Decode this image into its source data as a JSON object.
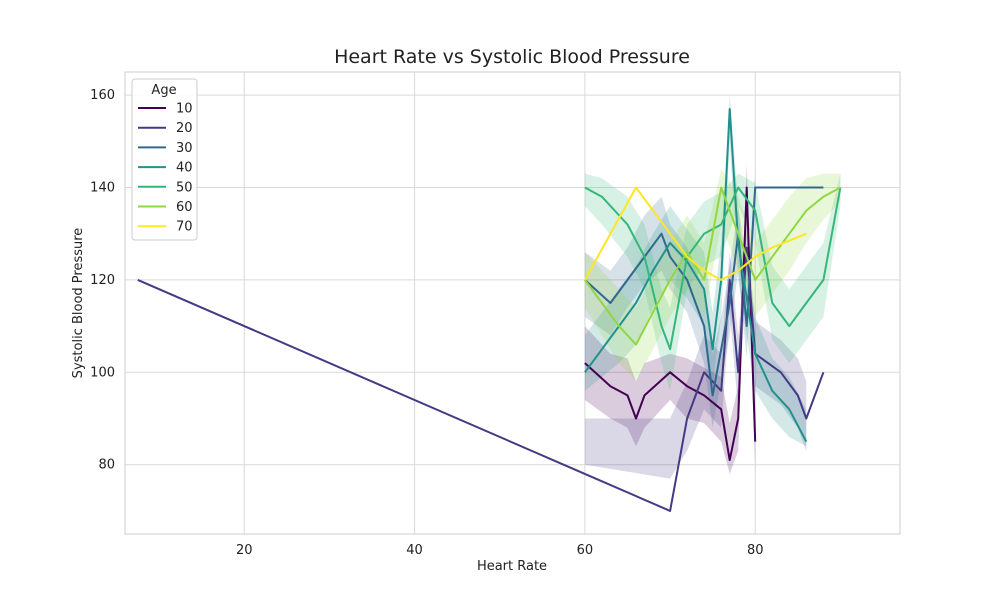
{
  "chart_data": {
    "type": "line",
    "title": "Heart Rate vs Systolic Blood Pressure",
    "xlabel": "Heart Rate",
    "ylabel": "Systolic Blood Pressure",
    "xlim": [
      6,
      97
    ],
    "ylim": [
      65,
      165
    ],
    "xticks": [
      20,
      40,
      60,
      80
    ],
    "yticks": [
      80,
      100,
      120,
      140,
      160
    ],
    "grid": true,
    "legend": {
      "title": "Age",
      "position": "top-left"
    },
    "series": [
      {
        "name": "10",
        "color": "#440154",
        "points": [
          [
            60,
            102
          ],
          [
            63,
            97
          ],
          [
            65,
            95
          ],
          [
            66,
            90
          ],
          [
            67,
            95
          ],
          [
            70,
            100
          ],
          [
            72,
            97
          ],
          [
            74,
            95
          ],
          [
            76,
            92
          ],
          [
            77,
            81
          ],
          [
            78,
            90
          ],
          [
            79,
            140
          ],
          [
            80,
            85
          ]
        ],
        "band": [
          [
            60,
            110,
            94
          ],
          [
            63,
            104,
            90
          ],
          [
            65,
            103,
            88
          ],
          [
            66,
            98,
            84
          ],
          [
            67,
            102,
            88
          ],
          [
            70,
            104,
            94
          ],
          [
            72,
            103,
            90
          ],
          [
            74,
            101,
            89
          ],
          [
            76,
            99,
            85
          ],
          [
            77,
            89,
            78
          ],
          [
            78,
            97,
            83
          ],
          [
            79,
            145,
            132
          ],
          [
            80,
            92,
            79
          ]
        ]
      },
      {
        "name": "20",
        "color": "#443983",
        "points": [
          [
            7.5,
            120
          ],
          [
            60,
            78
          ],
          [
            70,
            70
          ],
          [
            72,
            90
          ],
          [
            74,
            100
          ],
          [
            75,
            98
          ],
          [
            76,
            96
          ],
          [
            77,
            120
          ],
          [
            78,
            100
          ],
          [
            79,
            127
          ],
          [
            80,
            104
          ],
          [
            83,
            100
          ],
          [
            85,
            95
          ],
          [
            86,
            90
          ],
          [
            88,
            100
          ]
        ],
        "band": [
          [
            60,
            90,
            80
          ],
          [
            70,
            90,
            77
          ],
          [
            72,
            98,
            83
          ],
          [
            74,
            108,
            92
          ],
          [
            75,
            106,
            90
          ],
          [
            76,
            104,
            88
          ],
          [
            77,
            126,
            113
          ],
          [
            78,
            108,
            92
          ],
          [
            79,
            131,
            121
          ],
          [
            80,
            111,
            97
          ],
          [
            83,
            107,
            93
          ],
          [
            85,
            103,
            88
          ],
          [
            86,
            98,
            83
          ]
        ]
      },
      {
        "name": "30",
        "color": "#31688e",
        "points": [
          [
            60,
            120
          ],
          [
            63,
            115
          ],
          [
            65,
            120
          ],
          [
            67,
            125
          ],
          [
            69,
            130
          ],
          [
            70,
            125
          ],
          [
            72,
            120
          ],
          [
            74,
            110
          ],
          [
            75,
            95
          ],
          [
            76,
            105
          ],
          [
            77,
            115
          ],
          [
            78,
            130
          ],
          [
            79,
            110
          ],
          [
            80,
            140
          ],
          [
            84,
            140
          ],
          [
            88,
            140
          ]
        ],
        "band": [
          [
            60,
            126,
            112
          ],
          [
            63,
            122,
            108
          ],
          [
            65,
            127,
            114
          ],
          [
            67,
            134,
            119
          ],
          [
            69,
            138,
            122
          ],
          [
            70,
            132,
            118
          ],
          [
            72,
            127,
            113
          ],
          [
            74,
            118,
            102
          ],
          [
            75,
            104,
            88
          ],
          [
            76,
            112,
            98
          ],
          [
            77,
            123,
            108
          ],
          [
            78,
            136,
            122
          ],
          [
            79,
            117,
            103
          ],
          [
            80,
            143,
            136
          ]
        ]
      },
      {
        "name": "40",
        "color": "#21918c",
        "points": [
          [
            60,
            100
          ],
          [
            64,
            110
          ],
          [
            66,
            115
          ],
          [
            68,
            122
          ],
          [
            70,
            128
          ],
          [
            72,
            124
          ],
          [
            74,
            118
          ],
          [
            75,
            105
          ],
          [
            76,
            120
          ],
          [
            77,
            157
          ],
          [
            78,
            128
          ],
          [
            80,
            104
          ],
          [
            82,
            96
          ],
          [
            84,
            92
          ],
          [
            86,
            85
          ]
        ],
        "band": [
          [
            60,
            108,
            96
          ],
          [
            64,
            118,
            102
          ],
          [
            66,
            123,
            106
          ],
          [
            68,
            130,
            114
          ],
          [
            70,
            136,
            120
          ],
          [
            72,
            131,
            116
          ],
          [
            74,
            126,
            110
          ],
          [
            75,
            113,
            97
          ],
          [
            76,
            128,
            112
          ],
          [
            77,
            160,
            150
          ],
          [
            78,
            136,
            120
          ],
          [
            80,
            112,
            96
          ],
          [
            82,
            103,
            90
          ],
          [
            84,
            99,
            86
          ],
          [
            86,
            92,
            84
          ]
        ]
      },
      {
        "name": "50",
        "color": "#35b779",
        "points": [
          [
            60,
            140
          ],
          [
            62,
            138
          ],
          [
            65,
            132
          ],
          [
            67,
            125
          ],
          [
            69,
            110
          ],
          [
            70,
            105
          ],
          [
            72,
            125
          ],
          [
            74,
            130
          ],
          [
            76,
            132
          ],
          [
            78,
            140
          ],
          [
            80,
            135
          ],
          [
            82,
            115
          ],
          [
            84,
            110
          ],
          [
            86,
            115
          ],
          [
            88,
            120
          ],
          [
            90,
            140
          ]
        ],
        "band": [
          [
            60,
            143,
            136
          ],
          [
            62,
            142,
            132
          ],
          [
            65,
            138,
            125
          ],
          [
            67,
            132,
            118
          ],
          [
            69,
            118,
            102
          ],
          [
            70,
            114,
            96
          ],
          [
            72,
            132,
            118
          ],
          [
            74,
            137,
            123
          ],
          [
            76,
            139,
            125
          ],
          [
            78,
            143,
            136
          ],
          [
            80,
            141,
            128
          ],
          [
            82,
            123,
            107
          ],
          [
            84,
            118,
            102
          ],
          [
            86,
            123,
            107
          ],
          [
            88,
            128,
            112
          ],
          [
            90,
            143,
            136
          ]
        ]
      },
      {
        "name": "60",
        "color": "#90d743",
        "points": [
          [
            60,
            120
          ],
          [
            62,
            115
          ],
          [
            64,
            110
          ],
          [
            66,
            106
          ],
          [
            68,
            113
          ],
          [
            70,
            120
          ],
          [
            72,
            126
          ],
          [
            74,
            120
          ],
          [
            76,
            140
          ],
          [
            78,
            130
          ],
          [
            80,
            120
          ],
          [
            82,
            125
          ],
          [
            84,
            130
          ],
          [
            86,
            135
          ],
          [
            88,
            138
          ],
          [
            90,
            140
          ]
        ],
        "band": [
          [
            60,
            126,
            114
          ],
          [
            62,
            122,
            108
          ],
          [
            64,
            118,
            102
          ],
          [
            66,
            114,
            98
          ],
          [
            68,
            121,
            105
          ],
          [
            70,
            128,
            112
          ],
          [
            72,
            134,
            118
          ],
          [
            74,
            128,
            112
          ],
          [
            76,
            144,
            132
          ],
          [
            78,
            138,
            122
          ],
          [
            80,
            128,
            112
          ],
          [
            82,
            133,
            117
          ],
          [
            84,
            138,
            122
          ],
          [
            86,
            142,
            128
          ],
          [
            88,
            143,
            133
          ],
          [
            90,
            143,
            137
          ]
        ]
      },
      {
        "name": "70",
        "color": "#fde725",
        "points": [
          [
            60,
            120
          ],
          [
            66,
            140
          ],
          [
            70,
            130
          ],
          [
            72,
            125
          ],
          [
            74,
            122
          ],
          [
            76,
            120
          ],
          [
            78,
            122
          ],
          [
            80,
            125
          ],
          [
            82,
            127
          ],
          [
            86,
            130
          ]
        ],
        "band": []
      }
    ]
  }
}
